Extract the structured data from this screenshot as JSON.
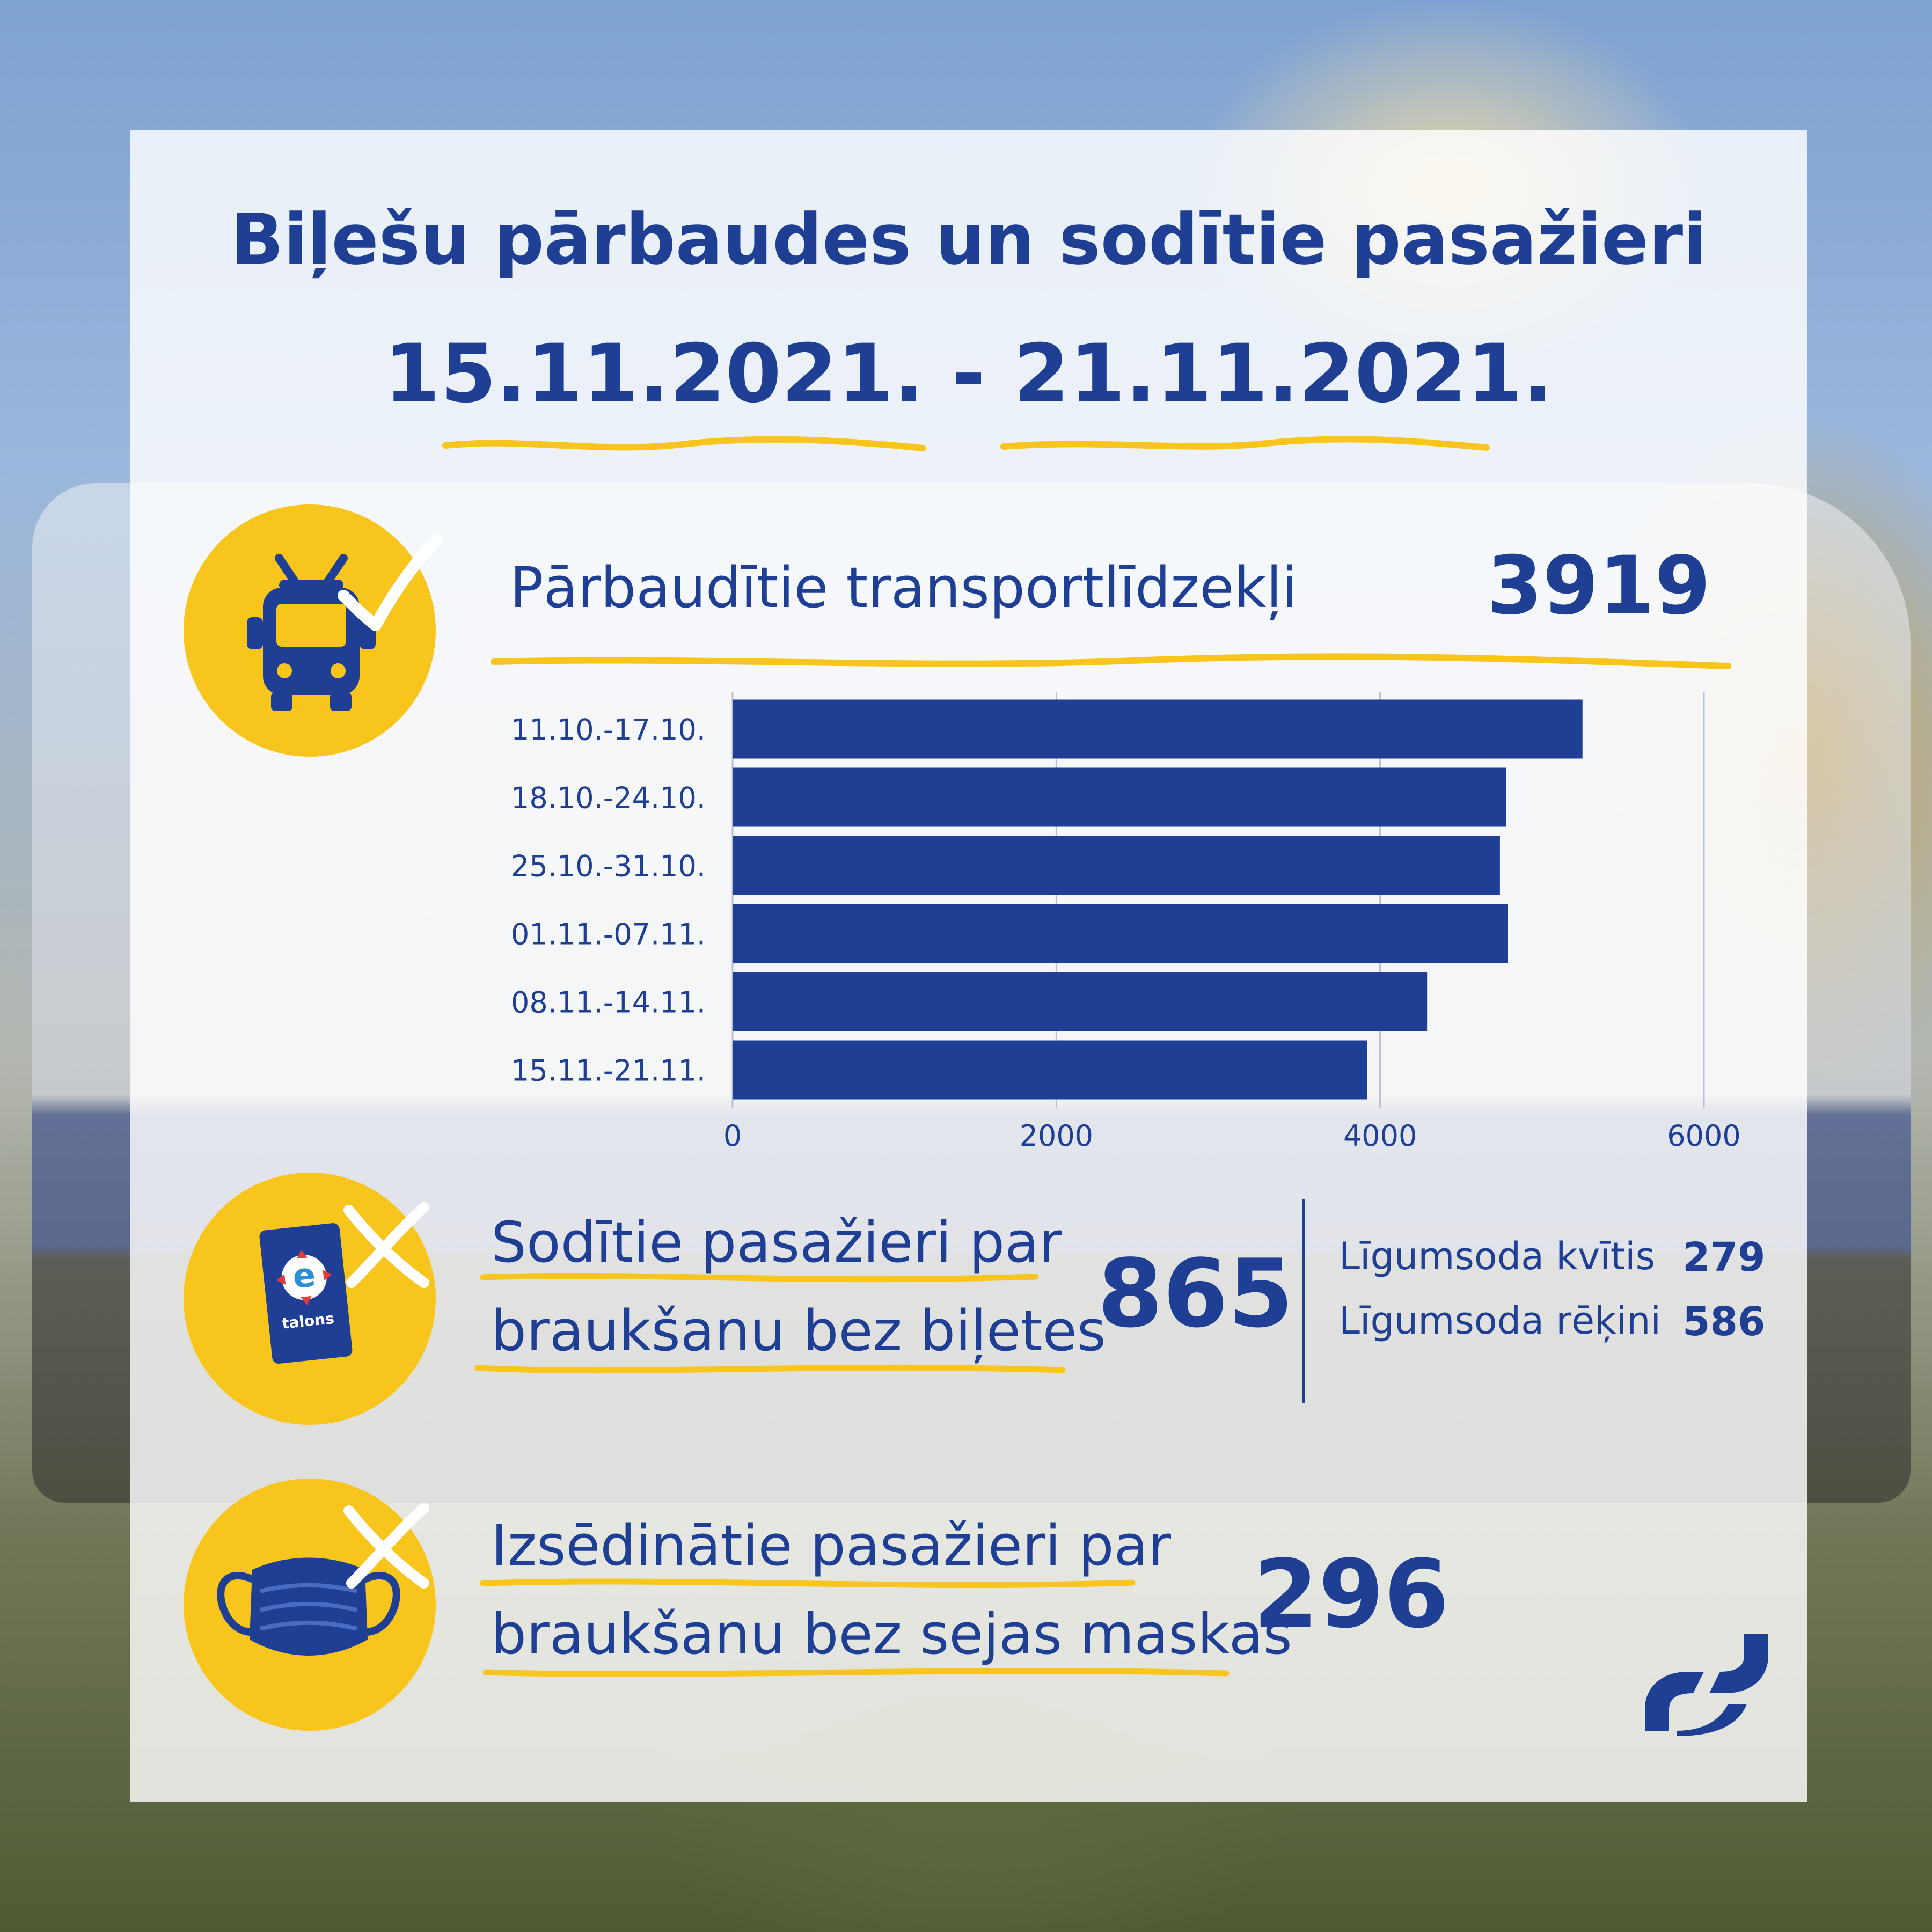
{
  "header": {
    "title": "Biļešu pārbaudes un sodītie pasažieri",
    "period": "15.11.2021. - 21.11.2021."
  },
  "vehicles": {
    "label": "Pārbaudītie transportlīdzekļi",
    "value": "3919",
    "icon": "trolleybus-icon"
  },
  "chart_data": {
    "type": "bar",
    "orientation": "horizontal",
    "categories": [
      "11.10.-17.10.",
      "18.10.-24.10.",
      "25.10.-31.10.",
      "01.11.-07.11.",
      "08.11.-14.11.",
      "15.11.-21.11."
    ],
    "values": [
      5250,
      4780,
      4740,
      4790,
      4290,
      3919
    ],
    "xlim": [
      0,
      6000
    ],
    "xticks": [
      0,
      2000,
      4000,
      6000
    ],
    "grid": true,
    "bar_color": "#1e3f94"
  },
  "fined": {
    "label_line1": "Sodītie pasažieri par",
    "label_line2": "braukšanu bez biļetes",
    "value": "865",
    "icon": "etalons-card-icon",
    "card_text": "talons",
    "breakdown": [
      {
        "label": "Līgumsoda kvītis",
        "value": "279"
      },
      {
        "label": "Līgumsoda rēķini",
        "value": "586"
      }
    ]
  },
  "removed": {
    "label_line1": "Izsēdinātie pasažieri par",
    "label_line2": "braukšanu bez sejas maskas",
    "value": "296",
    "icon": "face-mask-icon"
  },
  "colors": {
    "accent": "#1e3f94",
    "yellow": "#f7c51b"
  }
}
